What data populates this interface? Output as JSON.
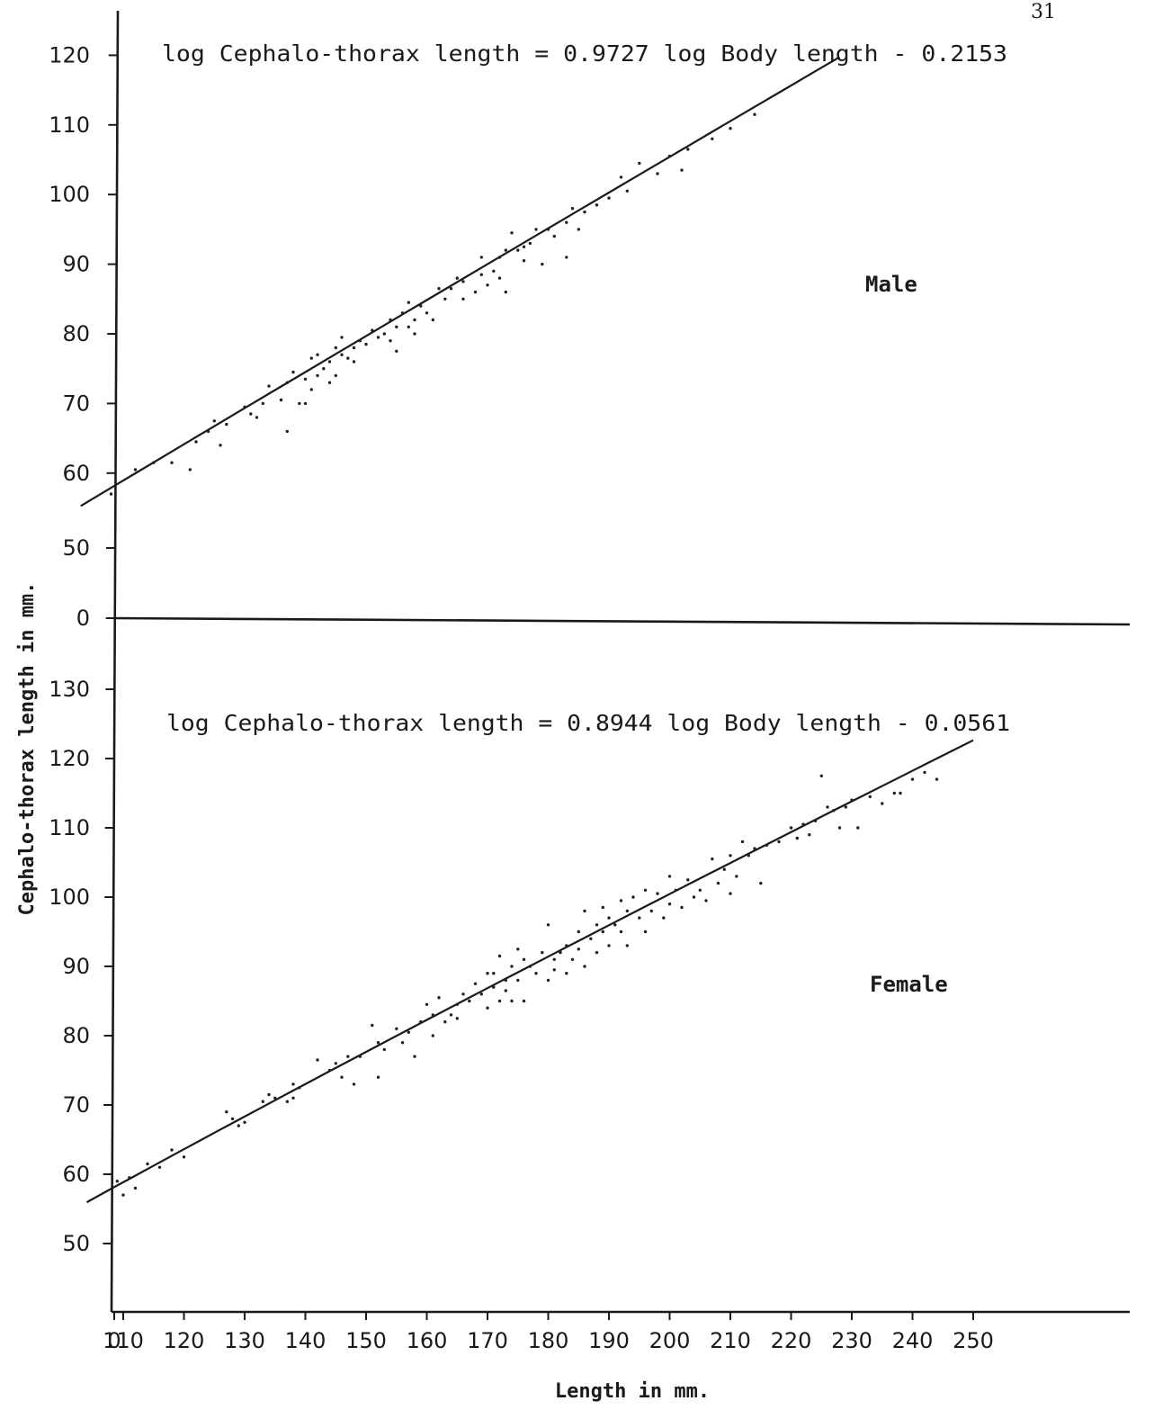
{
  "page_number": "31",
  "chart_data": {
    "type": "scatter",
    "y_axis_title": "Cephalo-thorax length in mm.",
    "x_axis_title": "Length in mm.",
    "x_ticks": [
      "0",
      "110",
      "120",
      "130",
      "140",
      "150",
      "160",
      "170",
      "180",
      "190",
      "200",
      "210",
      "220",
      "230",
      "240",
      "250"
    ],
    "panels": [
      {
        "name": "Male",
        "label": "Male",
        "equation": "log Cephalo-thorax length = 0.9727 log Body length - 0.2153",
        "y_ticks": [
          "0",
          "50",
          "60",
          "70",
          "80",
          "90",
          "100",
          "110",
          "120"
        ],
        "regression": {
          "slope": 0.9727,
          "intercept": -0.2153,
          "x_range": [
            103,
            228
          ]
        },
        "points": [
          [
            108,
            57
          ],
          [
            112,
            60.5
          ],
          [
            115,
            61.5
          ],
          [
            118,
            61.5
          ],
          [
            121,
            60.5
          ],
          [
            122,
            64.5
          ],
          [
            124,
            66
          ],
          [
            125,
            67.5
          ],
          [
            126,
            64
          ],
          [
            127,
            67
          ],
          [
            130,
            69.5
          ],
          [
            131,
            68.5
          ],
          [
            132,
            68
          ],
          [
            133,
            70
          ],
          [
            134,
            72.5
          ],
          [
            136,
            70.5
          ],
          [
            137,
            66
          ],
          [
            137,
            73
          ],
          [
            138,
            74.5
          ],
          [
            139,
            70
          ],
          [
            140,
            70
          ],
          [
            140,
            73.5
          ],
          [
            141,
            72
          ],
          [
            141,
            76.5
          ],
          [
            142,
            74
          ],
          [
            142,
            77
          ],
          [
            143,
            75
          ],
          [
            144,
            76
          ],
          [
            144,
            73
          ],
          [
            145,
            78
          ],
          [
            145,
            74
          ],
          [
            146,
            77
          ],
          [
            146,
            79.5
          ],
          [
            147,
            76.5
          ],
          [
            148,
            78
          ],
          [
            148,
            76
          ],
          [
            149,
            79
          ],
          [
            150,
            78.5
          ],
          [
            151,
            80.5
          ],
          [
            152,
            79.5
          ],
          [
            153,
            80
          ],
          [
            154,
            79
          ],
          [
            154,
            82
          ],
          [
            155,
            81
          ],
          [
            155,
            77.5
          ],
          [
            156,
            83
          ],
          [
            157,
            84.5
          ],
          [
            157,
            81
          ],
          [
            158,
            82
          ],
          [
            158,
            80
          ],
          [
            159,
            84
          ],
          [
            160,
            83
          ],
          [
            161,
            82
          ],
          [
            162,
            86.5
          ],
          [
            163,
            85
          ],
          [
            164,
            86.5
          ],
          [
            165,
            88
          ],
          [
            166,
            87.5
          ],
          [
            166,
            85
          ],
          [
            168,
            86
          ],
          [
            169,
            88.5
          ],
          [
            169,
            91
          ],
          [
            170,
            87
          ],
          [
            171,
            89
          ],
          [
            172,
            91
          ],
          [
            172,
            88
          ],
          [
            173,
            92
          ],
          [
            173,
            86
          ],
          [
            174,
            94.5
          ],
          [
            175,
            92
          ],
          [
            176,
            92.5
          ],
          [
            176,
            90.5
          ],
          [
            177,
            93
          ],
          [
            178,
            95
          ],
          [
            179,
            90
          ],
          [
            180,
            95
          ],
          [
            181,
            94
          ],
          [
            183,
            96
          ],
          [
            183,
            91
          ],
          [
            184,
            98
          ],
          [
            185,
            95
          ],
          [
            186,
            97.5
          ],
          [
            188,
            98.5
          ],
          [
            190,
            99.5
          ],
          [
            192,
            102.5
          ],
          [
            193,
            100.5
          ],
          [
            195,
            104.5
          ],
          [
            198,
            103
          ],
          [
            200,
            105.5
          ],
          [
            202,
            103.5
          ],
          [
            203,
            106.5
          ],
          [
            207,
            108
          ],
          [
            210,
            109.5
          ],
          [
            214,
            111.5
          ]
        ]
      },
      {
        "name": "Female",
        "label": "Female",
        "equation": "log Cephalo-thorax length = 0.8944 log Body length - 0.0561",
        "y_ticks": [
          "50",
          "60",
          "70",
          "80",
          "90",
          "100",
          "110",
          "120",
          "130"
        ],
        "regression": {
          "slope": 0.8944,
          "intercept": -0.0561,
          "x_range": [
            104,
            250
          ]
        },
        "points": [
          [
            109,
            59
          ],
          [
            110,
            57
          ],
          [
            111,
            59.5
          ],
          [
            112,
            58
          ],
          [
            114,
            61.5
          ],
          [
            116,
            61
          ],
          [
            118,
            63.5
          ],
          [
            120,
            62.5
          ],
          [
            127,
            69
          ],
          [
            128,
            68
          ],
          [
            129,
            67
          ],
          [
            130,
            67.5
          ],
          [
            133,
            70.5
          ],
          [
            134,
            71.5
          ],
          [
            135,
            71
          ],
          [
            137,
            70.5
          ],
          [
            138,
            73
          ],
          [
            138,
            71
          ],
          [
            139,
            72.5
          ],
          [
            142,
            76.5
          ],
          [
            144,
            75
          ],
          [
            145,
            76
          ],
          [
            146,
            74
          ],
          [
            147,
            77
          ],
          [
            148,
            73
          ],
          [
            149,
            77
          ],
          [
            151,
            81.5
          ],
          [
            152,
            79
          ],
          [
            152,
            74
          ],
          [
            153,
            78
          ],
          [
            155,
            81
          ],
          [
            156,
            79
          ],
          [
            157,
            80.5
          ],
          [
            158,
            77
          ],
          [
            159,
            82
          ],
          [
            160,
            84.5
          ],
          [
            161,
            80
          ],
          [
            161,
            83
          ],
          [
            162,
            85.5
          ],
          [
            163,
            82
          ],
          [
            164,
            83
          ],
          [
            165,
            84.5
          ],
          [
            165,
            82.5
          ],
          [
            166,
            86
          ],
          [
            167,
            85
          ],
          [
            168,
            87.5
          ],
          [
            169,
            86
          ],
          [
            170,
            89
          ],
          [
            170,
            84
          ],
          [
            171,
            87
          ],
          [
            171,
            89
          ],
          [
            172,
            85
          ],
          [
            172,
            91.5
          ],
          [
            173,
            86.5
          ],
          [
            173,
            88
          ],
          [
            174,
            90
          ],
          [
            174,
            85
          ],
          [
            175,
            92.5
          ],
          [
            175,
            88
          ],
          [
            176,
            91
          ],
          [
            176,
            85
          ],
          [
            177,
            90
          ],
          [
            178,
            89
          ],
          [
            179,
            92
          ],
          [
            180,
            88
          ],
          [
            180,
            96
          ],
          [
            181,
            91
          ],
          [
            181,
            89.5
          ],
          [
            182,
            92
          ],
          [
            183,
            93
          ],
          [
            183,
            89
          ],
          [
            184,
            91
          ],
          [
            185,
            95
          ],
          [
            185,
            92.5
          ],
          [
            186,
            90
          ],
          [
            186,
            98
          ],
          [
            187,
            94
          ],
          [
            188,
            96
          ],
          [
            188,
            92
          ],
          [
            189,
            95
          ],
          [
            189,
            98.5
          ],
          [
            190,
            97
          ],
          [
            190,
            93
          ],
          [
            191,
            96
          ],
          [
            192,
            99.5
          ],
          [
            192,
            95
          ],
          [
            193,
            98
          ],
          [
            193,
            93
          ],
          [
            194,
            100
          ],
          [
            195,
            97
          ],
          [
            196,
            101
          ],
          [
            196,
            95
          ],
          [
            197,
            98
          ],
          [
            198,
            100.5
          ],
          [
            199,
            97
          ],
          [
            200,
            99
          ],
          [
            200,
            103
          ],
          [
            201,
            101
          ],
          [
            202,
            98.5
          ],
          [
            203,
            102.5
          ],
          [
            204,
            100
          ],
          [
            205,
            101
          ],
          [
            206,
            99.5
          ],
          [
            207,
            105.5
          ],
          [
            208,
            102
          ],
          [
            209,
            104
          ],
          [
            210,
            100.5
          ],
          [
            210,
            106
          ],
          [
            211,
            103
          ],
          [
            212,
            108
          ],
          [
            213,
            106
          ],
          [
            214,
            107
          ],
          [
            215,
            102
          ],
          [
            216,
            107.5
          ],
          [
            218,
            108
          ],
          [
            220,
            110
          ],
          [
            221,
            108.5
          ],
          [
            222,
            110.5
          ],
          [
            223,
            109
          ],
          [
            224,
            111
          ],
          [
            225,
            117.5
          ],
          [
            226,
            113
          ],
          [
            227,
            112.5
          ],
          [
            228,
            110
          ],
          [
            229,
            113
          ],
          [
            230,
            114
          ],
          [
            231,
            110
          ],
          [
            233,
            114.5
          ],
          [
            235,
            113.5
          ],
          [
            237,
            115
          ],
          [
            238,
            115
          ],
          [
            240,
            117
          ],
          [
            242,
            118
          ],
          [
            244,
            117
          ]
        ]
      }
    ],
    "grid": false,
    "legend": "none"
  }
}
